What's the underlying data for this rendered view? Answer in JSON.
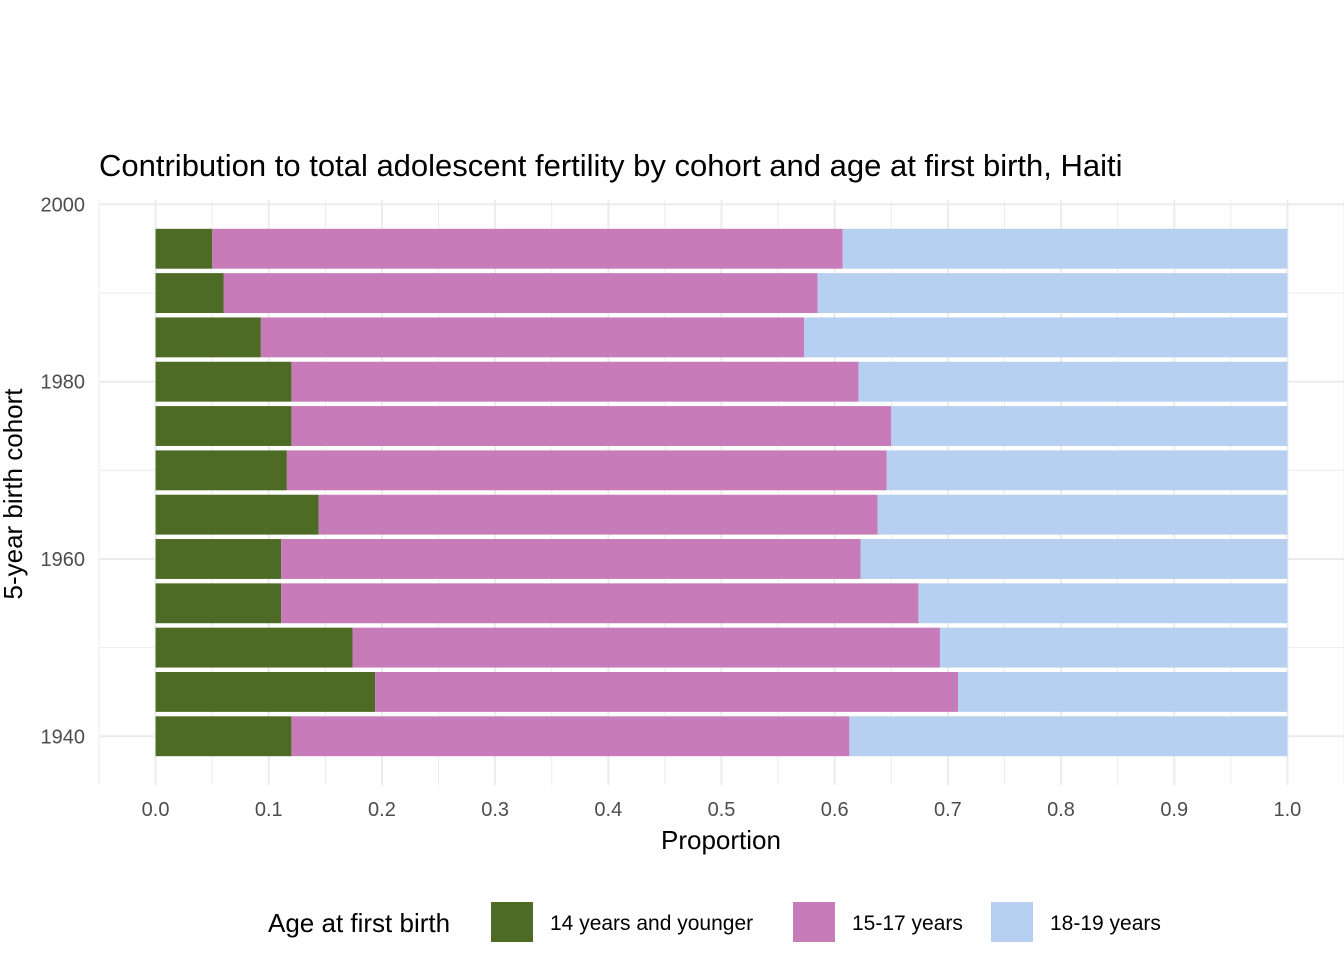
{
  "chart_data": {
    "type": "bar",
    "orientation": "horizontal",
    "stacked": true,
    "title": "Contribution to total adolescent fertility by cohort and age at first birth,  Haiti",
    "xlabel": "Proportion",
    "ylabel": "5-year birth cohort",
    "xlim": [
      -0.05,
      1.05
    ],
    "ylim": [
      1934.5,
      2000.5
    ],
    "x_ticks": [
      "0.0",
      "0.1",
      "0.2",
      "0.3",
      "0.4",
      "0.5",
      "0.6",
      "0.7",
      "0.8",
      "0.9",
      "1.0"
    ],
    "x_tick_values": [
      0,
      0.1,
      0.2,
      0.3,
      0.4,
      0.5,
      0.6,
      0.7,
      0.8,
      0.9,
      1.0
    ],
    "y_ticks": [
      "1940",
      "1960",
      "1980",
      "2000"
    ],
    "y_tick_values": [
      1940,
      1960,
      1980,
      2000
    ],
    "categories": [
      1940,
      1945,
      1950,
      1955,
      1960,
      1965,
      1970,
      1975,
      1980,
      1985,
      1990,
      1995
    ],
    "series": [
      {
        "name": "14 years and younger",
        "color": "#4e6b25",
        "values": [
          0.12,
          0.194,
          0.174,
          0.111,
          0.111,
          0.144,
          0.116,
          0.12,
          0.12,
          0.093,
          0.06,
          0.05
        ]
      },
      {
        "name": "15-17 years",
        "color": "#c77bb8",
        "values": [
          0.493,
          0.515,
          0.519,
          0.563,
          0.512,
          0.494,
          0.53,
          0.53,
          0.501,
          0.48,
          0.525,
          0.557
        ]
      },
      {
        "name": "18-19 years",
        "color": "#b7cff0",
        "values": [
          0.387,
          0.291,
          0.307,
          0.326,
          0.377,
          0.362,
          0.354,
          0.35,
          0.379,
          0.427,
          0.415,
          0.393
        ]
      }
    ],
    "grid": true,
    "legend": {
      "title": "Age at first birth",
      "position": "bottom"
    }
  }
}
